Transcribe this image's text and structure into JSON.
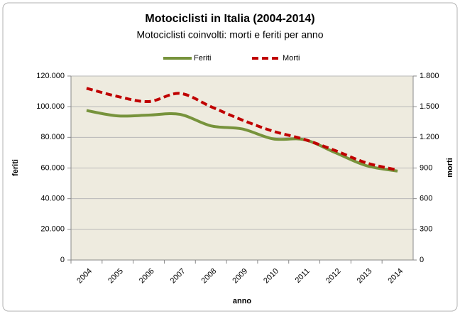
{
  "chart_data": {
    "type": "line",
    "title": "Motociclisti in Italia (2004-2014)",
    "subtitle": "Motociclisti coinvolti: morti e feriti per anno",
    "xlabel": "anno",
    "ylabel": "feriti",
    "y2label": "morti",
    "categories": [
      "2004",
      "2005",
      "2006",
      "2007",
      "2008",
      "2009",
      "2010",
      "2011",
      "2012",
      "2013",
      "2014"
    ],
    "series": [
      {
        "name": "Feriti",
        "color": "#77933c",
        "dash": false,
        "values": [
          97500,
          94000,
          94500,
          95000,
          87500,
          85500,
          79000,
          78500,
          70000,
          61500,
          58000
        ]
      },
      {
        "name": "Morti",
        "color": "#c00000",
        "dash": true,
        "axis": "y2",
        "values": [
          1680,
          1600,
          1550,
          1630,
          1500,
          1370,
          1260,
          1180,
          1070,
          950,
          880
        ]
      }
    ],
    "ylim": [
      0,
      120000
    ],
    "yticks": [
      0,
      {
        "value": 20000,
        "label": "20.000"
      },
      {
        "value": 40000,
        "label": "40.000"
      },
      {
        "value": 60000,
        "label": "60.000"
      },
      {
        "value": 80000,
        "label": "80.000"
      },
      {
        "value": 100000,
        "label": "100.000"
      },
      {
        "value": 120000,
        "label": "120.000"
      }
    ],
    "y2lim": [
      0,
      1800
    ],
    "y2ticks": [
      0,
      300,
      600,
      900,
      {
        "value": 1200,
        "label": "1.200"
      },
      {
        "value": 1500,
        "label": "1.500"
      },
      {
        "value": 1800,
        "label": "1.800"
      }
    ],
    "grid": true,
    "legend": "top"
  }
}
